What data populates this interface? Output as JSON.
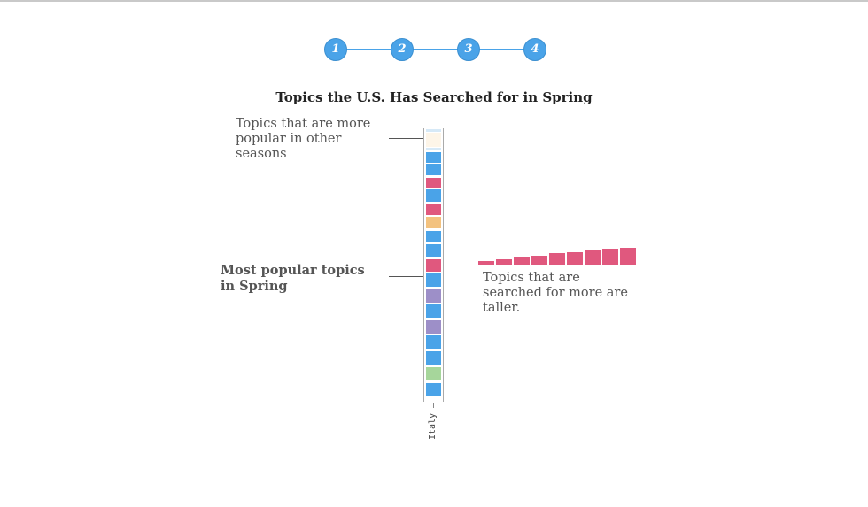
{
  "steps": [
    "1",
    "2",
    "3",
    "4"
  ],
  "title": "Topics the U.S. Has Searched for in Spring",
  "annotations": {
    "other_seasons": "Topics that are more popular in other seasons",
    "most_popular": "Most popular topics in Spring",
    "taller": "Topics that are searched for more are taller."
  },
  "column_label": "Italy",
  "colors": {
    "blue": "#4aa3e8",
    "pink": "#e0587e",
    "orange": "#f3c27f",
    "purple": "#9d8fc8",
    "green": "#a6d69b",
    "pale": "#fdf5e8",
    "pale_blue": "#d6e9f7"
  },
  "column_cells": [
    "pale_blue",
    "pale",
    "pale_blue",
    "blue",
    "blue",
    "pink",
    "blue",
    "pink",
    "orange",
    "blue",
    "blue",
    "pink",
    "blue",
    "purple",
    "blue",
    "purple",
    "blue",
    "blue",
    "green",
    "blue"
  ],
  "bars": {
    "color": "pink",
    "relative_values": [
      0.17,
      0.25,
      0.32,
      0.39,
      0.5,
      0.57,
      0.64,
      0.71,
      0.75
    ]
  }
}
